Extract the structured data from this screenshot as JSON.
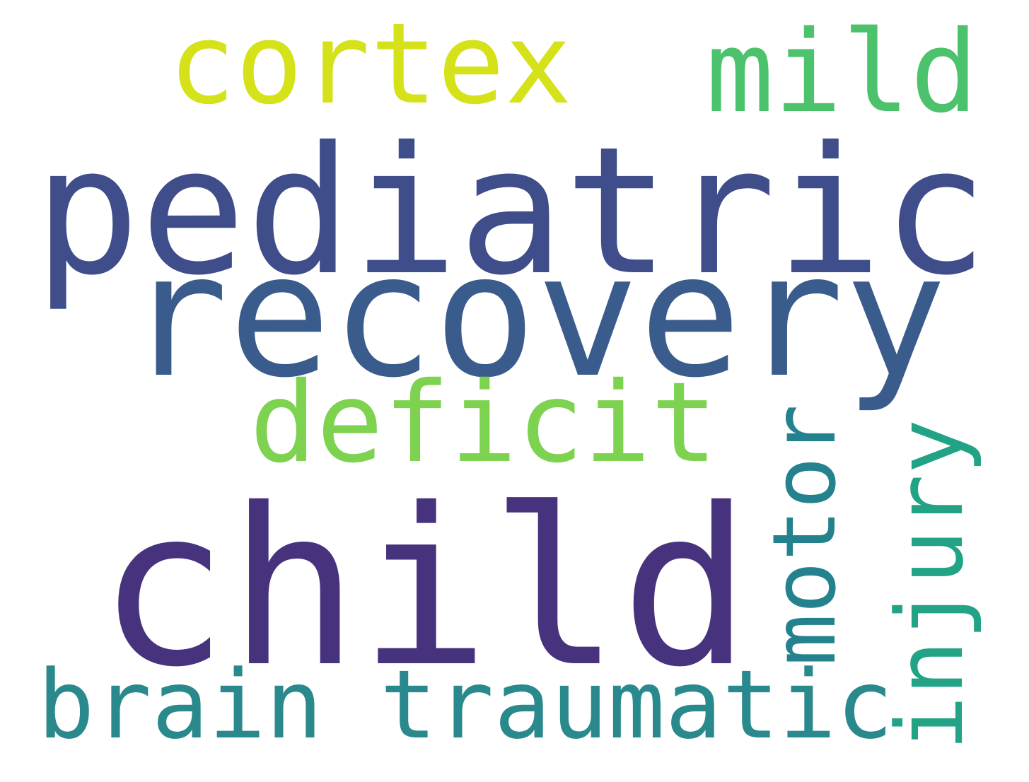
{
  "words": [
    {
      "text": "pediatric",
      "color": "#3f4d8a"
    },
    {
      "text": "recovery",
      "color": "#3a5c8c"
    },
    {
      "text": "child",
      "color": "#47327e"
    },
    {
      "text": "cortex",
      "color": "#d5e21a"
    },
    {
      "text": "mild",
      "color": "#4cc26c"
    },
    {
      "text": "deficit",
      "color": "#7dd250"
    },
    {
      "text": "brain traumatic",
      "color": "#2a898c"
    },
    {
      "text": "motor",
      "color": "#24828e"
    },
    {
      "text": "injury",
      "color": "#22a385"
    }
  ]
}
